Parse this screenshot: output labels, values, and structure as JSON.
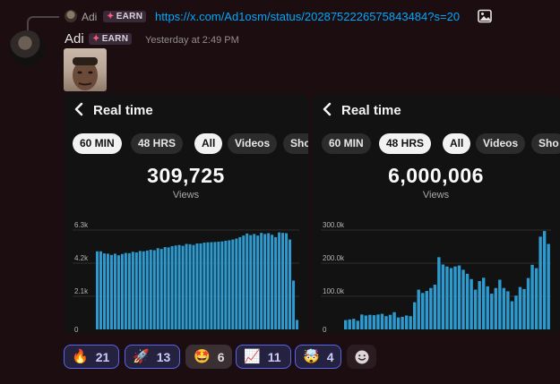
{
  "reply": {
    "author": "Adi",
    "badge": "EARN",
    "link": "https://x.com/Ad1osm/status/2028752226575843484?s=20",
    "attachment_icon": "image-icon"
  },
  "message": {
    "author": "Adi",
    "badge": "EARN",
    "timestamp": "Yesterday at 2:49 PM"
  },
  "panels": [
    {
      "title": "Real time",
      "tabs": [
        "60 MIN",
        "48 HRS"
      ],
      "active_tab": "60 MIN",
      "filters": [
        "All",
        "Videos",
        "Sho"
      ],
      "active_filter": "All",
      "total": "309,725",
      "total_label": "Views"
    },
    {
      "title": "Real time",
      "tabs": [
        "60 MIN",
        "48 HRS"
      ],
      "active_tab": "48 HRS",
      "filters": [
        "All",
        "Videos",
        "Sho"
      ],
      "active_filter": "All",
      "total": "6,000,006",
      "total_label": "Views"
    }
  ],
  "chart_data": [
    {
      "type": "bar",
      "title": "",
      "xlabel": "",
      "ylabel": "",
      "yticks": [
        "6.3k",
        "4.2k",
        "2.1k",
        "0"
      ],
      "ylim": [
        0,
        6300
      ],
      "grid": true,
      "color": "#2e9bd0",
      "series": [
        {
          "values": [
            4950,
            4950,
            4820,
            4800,
            4720,
            4800,
            4700,
            4780,
            4850,
            4830,
            4920,
            4880,
            4970,
            4950,
            5000,
            5050,
            5020,
            5150,
            5100,
            5220,
            5200,
            5280,
            5320,
            5350,
            5300,
            5420,
            5400,
            5350,
            5450,
            5450,
            5500,
            5520,
            5530,
            5540,
            5560,
            5580,
            5620,
            5650,
            5700,
            5760,
            5850,
            5950,
            6080,
            5980,
            6050,
            5950,
            6120,
            6050,
            6100,
            6000,
            5850,
            6150,
            6120,
            6100,
            5700,
            3100,
            600
          ]
        }
      ]
    },
    {
      "type": "bar",
      "title": "",
      "xlabel": "",
      "ylabel": "",
      "yticks": [
        "300.0k",
        "200.0k",
        "100.0k",
        "0"
      ],
      "ylim": [
        0,
        300000
      ],
      "grid": true,
      "color": "#2e9bd0",
      "series": [
        {
          "values": [
            28000,
            30000,
            32000,
            26000,
            45000,
            42000,
            44000,
            43000,
            45000,
            47000,
            40000,
            44000,
            52000,
            36000,
            38000,
            42000,
            40000,
            82000,
            120000,
            110000,
            116000,
            125000,
            135000,
            218000,
            196000,
            190000,
            185000,
            190000,
            193000,
            180000,
            168000,
            152000,
            120000,
            146000,
            156000,
            130000,
            108000,
            125000,
            150000,
            125000,
            115000,
            85000,
            102000,
            128000,
            122000,
            155000,
            195000,
            185000,
            280000,
            297000,
            258000
          ]
        }
      ]
    }
  ],
  "reactions": [
    {
      "emoji": "🔥",
      "icon": "fire-icon",
      "count": "21"
    },
    {
      "emoji": "🚀",
      "icon": "rocket-icon",
      "count": "13"
    },
    {
      "emoji": "🤩",
      "icon": "heart-eyes-icon",
      "count": "6"
    },
    {
      "emoji": "📈",
      "icon": "chart-increasing-icon",
      "count": "11"
    },
    {
      "emoji": "🤯",
      "icon": "exploding-head-icon",
      "count": "4"
    }
  ],
  "add_reaction_icon": "add-reaction-icon"
}
